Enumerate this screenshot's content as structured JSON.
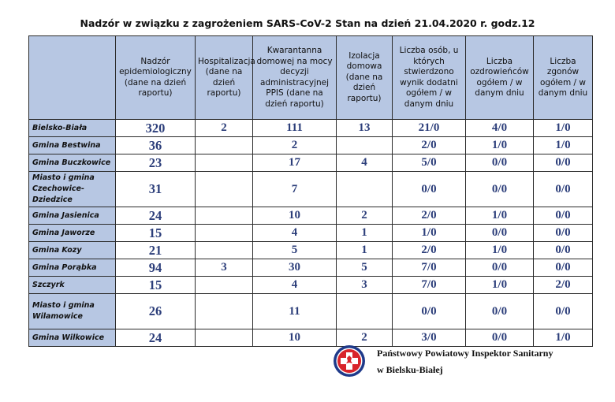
{
  "title": "Nadzór w związku z zagrożeniem SARS-CoV-2   Stan na dzień 21.04.2020 r. godz.12",
  "table": {
    "headers": [
      "",
      "Nadzór epidemiologiczny (dane na dzień raportu)",
      "Hospitalizacja (dane na dzień raportu)",
      "Kwarantanna domowej na mocy decyzji administracyjnej PPIS (dane na dzień raportu)",
      "Izolacja domowa (dane na dzień raportu)",
      "Liczba osób, u których stwierdzono wynik dodatni ogółem / w danym dniu",
      "Liczba ozdrowieńców ogółem / w danym dniu",
      "Liczba zgonów ogółem / w danym dniu"
    ],
    "rows": [
      {
        "name": "Bielsko-Biała",
        "values": [
          "320",
          "2",
          "111",
          "13",
          "21/0",
          "4/0",
          "1/0"
        ]
      },
      {
        "name": "Gmina Bestwina",
        "values": [
          "36",
          "",
          "2",
          "",
          "2/0",
          "1/0",
          "1/0"
        ]
      },
      {
        "name": "Gmina Buczkowice",
        "values": [
          "23",
          "",
          "17",
          "4",
          "5/0",
          "0/0",
          "0/0"
        ]
      },
      {
        "name": "Miasto i gmina Czechowice-Dziedzice",
        "values": [
          "31",
          "",
          "7",
          "",
          "0/0",
          "0/0",
          "0/0"
        ]
      },
      {
        "name": "Gmina Jasienica",
        "values": [
          "24",
          "",
          "10",
          "2",
          "2/0",
          "1/0",
          "0/0"
        ]
      },
      {
        "name": "Gmina Jaworze",
        "values": [
          "15",
          "",
          "4",
          "1",
          "1/0",
          "0/0",
          "0/0"
        ]
      },
      {
        "name": "Gmina Kozy",
        "values": [
          "21",
          "",
          "5",
          "1",
          "2/0",
          "1/0",
          "0/0"
        ]
      },
      {
        "name": "Gmina Porąbka",
        "values": [
          "94",
          "3",
          "30",
          "5",
          "7/0",
          "0/0",
          "0/0"
        ]
      },
      {
        "name": "Szczyrk",
        "values": [
          "15",
          "",
          "4",
          "3",
          "7/0",
          "1/0",
          "2/0"
        ]
      },
      {
        "name": "Miasto i gmina Wilamowice",
        "values": [
          "26",
          "",
          "11",
          "",
          "0/0",
          "0/0",
          "0/0"
        ]
      },
      {
        "name": "Gmina Wilkowice",
        "values": [
          "24",
          "",
          "10",
          "2",
          "3/0",
          "0/0",
          "1/0"
        ]
      }
    ]
  },
  "footer": {
    "line1": "Państwowy Powiatowy Inspektor Sanitarny",
    "line2": "w Bielsku-Białej",
    "seal_icon": "sanitary-inspection-seal-icon"
  },
  "colors": {
    "header_bg": "#b7c7e3",
    "value_text": "#2c3e7a",
    "seal_red": "#d8232a",
    "seal_blue": "#1f3a8a"
  }
}
